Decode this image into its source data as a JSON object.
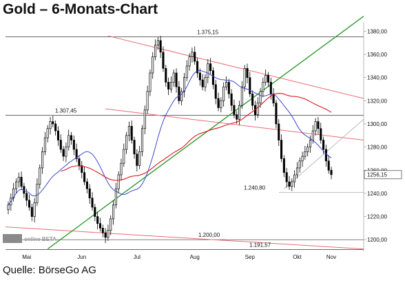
{
  "title": "Gold – 6-Monats-Chart",
  "source": "Quelle: BörseGo AG",
  "watermark": "online BETA",
  "colors": {
    "up": "#ffffff",
    "down": "#000000",
    "ma_blue": "#3b46c9",
    "ma_red": "#d9141e",
    "trend_pink": "#e86a72",
    "trend_green": "#2e9a2e",
    "trend_gray": "#b8b8b8",
    "hline": "#333333"
  },
  "chart_data": {
    "type": "candlestick",
    "title": "Gold – 6-Monats-Chart",
    "x_labels": [
      "Mai",
      "Jun",
      "Jul",
      "Aug",
      "Sep",
      "Okt",
      "Nov"
    ],
    "y_ticks": [
      1200,
      1220,
      1240,
      1260,
      1280,
      1300,
      1320,
      1340,
      1360,
      1380
    ],
    "y_tick_labels": [
      "1200,00",
      "1220,00",
      "1240,00",
      "1260,00",
      "1280,00",
      "1300,00",
      "1320,00",
      "1340,00",
      "1360,00",
      "1380,00"
    ],
    "ylim": [
      1190,
      1388
    ],
    "last_price_label": "1256,15",
    "last_price": 1256.15,
    "horizontal_levels": [
      {
        "label": "1.375,15",
        "value": 1375.15
      },
      {
        "label": "1.307,45",
        "value": 1307.45
      },
      {
        "label": "1.240,80",
        "value": 1240.8
      },
      {
        "label": "1.200,00",
        "value": 1200.0
      },
      {
        "label": "1.191,57",
        "value": 1191.57
      }
    ],
    "closes": [
      1230,
      1236,
      1244,
      1250,
      1254,
      1246,
      1240,
      1234,
      1228,
      1220,
      1232,
      1248,
      1262,
      1276,
      1288,
      1296,
      1302,
      1300,
      1294,
      1286,
      1278,
      1272,
      1280,
      1290,
      1286,
      1278,
      1270,
      1264,
      1258,
      1250,
      1244,
      1236,
      1228,
      1220,
      1214,
      1210,
      1206,
      1202,
      1208,
      1218,
      1230,
      1244,
      1256,
      1266,
      1278,
      1290,
      1298,
      1286,
      1274,
      1264,
      1276,
      1296,
      1312,
      1328,
      1344,
      1358,
      1368,
      1372,
      1362,
      1348,
      1336,
      1330,
      1336,
      1344,
      1332,
      1320,
      1328,
      1340,
      1350,
      1358,
      1362,
      1354,
      1344,
      1338,
      1332,
      1340,
      1352,
      1346,
      1334,
      1322,
      1314,
      1320,
      1332,
      1336,
      1326,
      1316,
      1308,
      1304,
      1316,
      1332,
      1348,
      1340,
      1326,
      1316,
      1308,
      1318,
      1328,
      1336,
      1342,
      1336,
      1326,
      1318,
      1300,
      1286,
      1270,
      1258,
      1250,
      1246,
      1250,
      1256,
      1262,
      1268,
      1272,
      1276,
      1280,
      1286,
      1294,
      1302,
      1296,
      1286,
      1278,
      1268,
      1260,
      1256.15
    ]
  }
}
